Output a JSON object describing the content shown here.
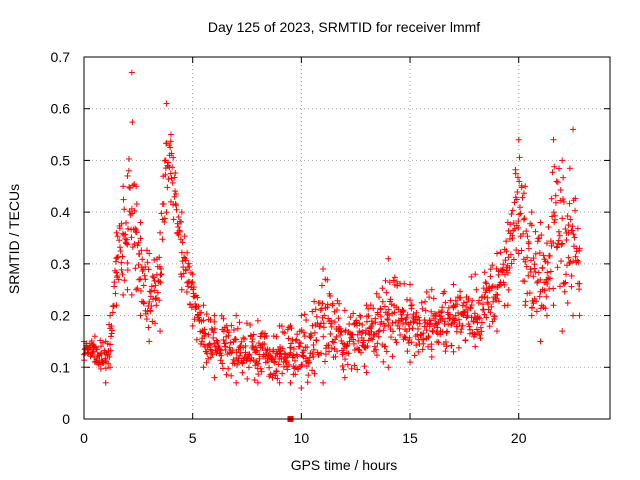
{
  "chart_data": {
    "type": "scatter",
    "title": "Day 125 of 2023, SRMTID for receiver lmmf",
    "xlabel": "GPS time / hours",
    "ylabel": "SRMTID / TECUs",
    "xlim": [
      0,
      24.2
    ],
    "ylim": [
      0,
      0.7
    ],
    "x_ticks": [
      0,
      5,
      10,
      15,
      20
    ],
    "y_ticks": [
      0,
      0.1,
      0.2,
      0.3,
      0.4,
      0.5,
      0.6,
      0.7
    ],
    "x_tick_labels": [
      "0",
      "5",
      "10",
      "15",
      "20"
    ],
    "y_tick_labels": [
      "0",
      "0.1",
      "0.2",
      "0.3",
      "0.4",
      "0.5",
      "0.6",
      "0.7"
    ],
    "grid": true,
    "marker": "+",
    "color": "#ff0000",
    "outlier": {
      "x": 9.5,
      "y": 0.0
    },
    "series": [
      {
        "name": "SRMTID",
        "envelope": {
          "x": [
            0,
            0.5,
            1.0,
            1.2,
            1.5,
            1.8,
            2.0,
            2.2,
            2.4,
            2.6,
            3.0,
            3.5,
            3.8,
            4.0,
            4.5,
            5.0,
            5.5,
            6.0,
            7.0,
            8.0,
            9.0,
            9.5,
            10.0,
            11.0,
            12.0,
            13.0,
            14.0,
            15.0,
            16.0,
            17.0,
            18.0,
            19.0,
            19.5,
            20.0,
            20.3,
            20.6,
            21.0,
            21.3,
            21.6,
            22.0,
            22.5,
            22.8
          ],
          "min": [
            0.1,
            0.11,
            0.07,
            0.1,
            0.22,
            0.24,
            0.25,
            0.24,
            0.25,
            0.2,
            0.15,
            0.17,
            0.4,
            0.42,
            0.25,
            0.18,
            0.1,
            0.08,
            0.07,
            0.07,
            0.07,
            0.07,
            0.06,
            0.07,
            0.08,
            0.09,
            0.1,
            0.11,
            0.12,
            0.13,
            0.14,
            0.17,
            0.22,
            0.32,
            0.22,
            0.2,
            0.15,
            0.2,
            0.22,
            0.17,
            0.2,
            0.2
          ],
          "max": [
            0.15,
            0.16,
            0.15,
            0.2,
            0.36,
            0.45,
            0.47,
            0.67,
            0.45,
            0.38,
            0.32,
            0.36,
            0.61,
            0.55,
            0.4,
            0.28,
            0.22,
            0.2,
            0.2,
            0.19,
            0.18,
            0.18,
            0.2,
            0.29,
            0.21,
            0.22,
            0.31,
            0.26,
            0.25,
            0.26,
            0.28,
            0.32,
            0.38,
            0.54,
            0.45,
            0.4,
            0.38,
            0.34,
            0.54,
            0.5,
            0.56,
            0.33
          ]
        },
        "n_points": 1300
      }
    ]
  }
}
